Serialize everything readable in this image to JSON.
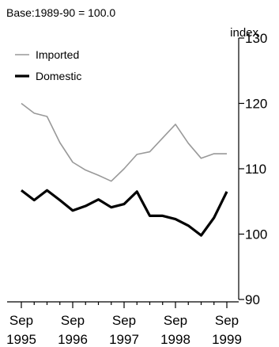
{
  "chart_data": {
    "type": "line",
    "subtitle": "Base:1989-90 = 100.0",
    "ylabel": "index",
    "ylim": [
      90,
      130
    ],
    "yticks": [
      90,
      100,
      110,
      120,
      130
    ],
    "grid": false,
    "legend_position": "top-left",
    "x": [
      "Sep 1995",
      "Dec 1995",
      "Mar 1996",
      "Jun 1996",
      "Sep 1996",
      "Dec 1996",
      "Mar 1997",
      "Jun 1997",
      "Sep 1997",
      "Dec 1997",
      "Mar 1998",
      "Jun 1998",
      "Sep 1998",
      "Dec 1998",
      "Mar 1999",
      "Jun 1999",
      "Sep 1999"
    ],
    "xticks": [
      {
        "index": 0,
        "month": "Sep",
        "year": "1995"
      },
      {
        "index": 4,
        "month": "Sep",
        "year": "1996"
      },
      {
        "index": 8,
        "month": "Sep",
        "year": "1997"
      },
      {
        "index": 12,
        "month": "Sep",
        "year": "1998"
      },
      {
        "index": 16,
        "month": "Sep",
        "year": "1999"
      }
    ],
    "series": [
      {
        "name": "Imported",
        "color": "#999999",
        "values": [
          120.0,
          118.5,
          118.0,
          114.0,
          111.0,
          109.8,
          109.0,
          108.1,
          110.0,
          112.2,
          112.6,
          114.7,
          116.8,
          113.9,
          111.6,
          112.3,
          112.3
        ]
      },
      {
        "name": "Domestic",
        "color": "#000000",
        "values": [
          106.7,
          105.2,
          106.7,
          105.2,
          103.6,
          104.3,
          105.3,
          104.1,
          104.6,
          106.5,
          102.8,
          102.8,
          102.3,
          101.3,
          99.8,
          102.5,
          106.5
        ]
      }
    ]
  }
}
